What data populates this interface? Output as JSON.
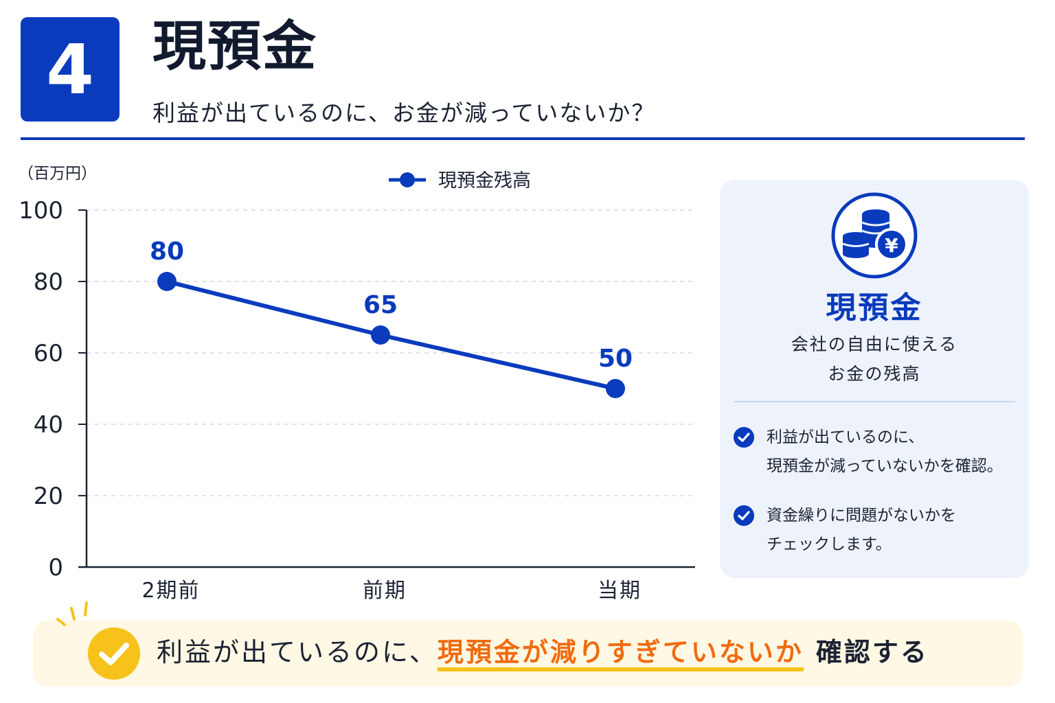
{
  "header": {
    "number": "4",
    "title": "現預金",
    "subtitle": "利益が出ているのに、お金が減っていないか？"
  },
  "chart_data": {
    "type": "line",
    "unit_label": "（百万円）",
    "categories": [
      "2期前",
      "前期",
      "当期"
    ],
    "series": [
      {
        "name": "現預金残高",
        "values": [
          80,
          65,
          50
        ],
        "color": "#0a3bbd"
      }
    ],
    "ylim": [
      0,
      100
    ],
    "yticks": [
      0,
      20,
      40,
      60,
      80,
      100
    ],
    "grid": true,
    "legend": "top-center",
    "data_labels": [
      "80",
      "65",
      "50"
    ]
  },
  "side_card": {
    "icon": "coins-yen-icon",
    "title": "現預金",
    "desc_line1": "会社の自由に使える",
    "desc_line2": "お金の残高",
    "checks": [
      {
        "line1": "利益が出ているのに、",
        "line2": "現預金が減っていないかを確認。"
      },
      {
        "line1": "資金繰りに問題がないかを",
        "line2": "チェックします。"
      }
    ]
  },
  "banner": {
    "text_before": "利益が出ているのに、",
    "highlight": "現預金が減りすぎていないか",
    "text_after": "確認する"
  }
}
